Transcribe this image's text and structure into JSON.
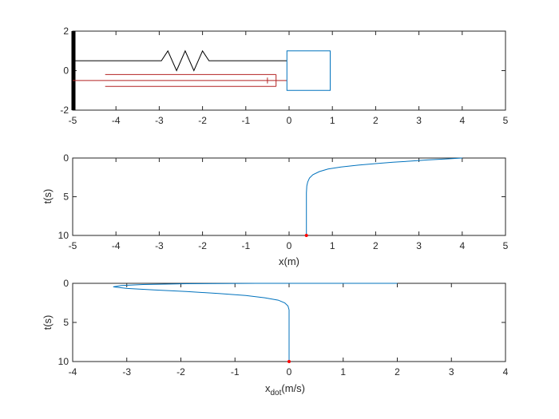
{
  "colors": {
    "axis": "#262626",
    "trace": "#0072BD",
    "damper": "#B22222",
    "spring": "#000000",
    "mass": "#0072BD",
    "marker": "#FF0000"
  },
  "chart_data": [
    {
      "type": "line",
      "panel": "mass-spring-damper schematic",
      "xlim": [
        -5,
        5
      ],
      "ylim": [
        -2,
        2
      ],
      "x_ticks": [
        "-5",
        "-4",
        "-3",
        "-2",
        "-1",
        "0",
        "1",
        "2",
        "3",
        "4",
        "5"
      ],
      "y_ticks": [
        "2",
        "0",
        "-2"
      ],
      "xlabel": "",
      "ylabel": "",
      "wall": {
        "x": -5,
        "y": [
          -2,
          2
        ]
      },
      "spring": {
        "x": [
          -5,
          -2.95,
          -2.8,
          -2.6,
          -2.4,
          -2.2,
          -2.0,
          -1.85,
          -0.05
        ],
        "y": [
          0.5,
          0.5,
          1.0,
          -0.0,
          1.0,
          -0.0,
          1.0,
          0.5,
          0.5
        ]
      },
      "damper": {
        "rod": {
          "x": [
            -5,
            -0.3
          ],
          "y": [
            -0.5,
            -0.5
          ]
        },
        "cylinder_top": {
          "x": [
            -4.25,
            -0.3
          ],
          "y": [
            -0.2,
            -0.2
          ]
        },
        "cylinder_bottom": {
          "x": [
            -4.25,
            -0.3
          ],
          "y": [
            -0.8,
            -0.8
          ]
        },
        "cylinder_end": {
          "x": [
            -0.3,
            -0.3
          ],
          "y": [
            -0.8,
            -0.2
          ]
        },
        "piston": {
          "x": [
            -0.5,
            -0.5
          ],
          "y": [
            -0.65,
            -0.35
          ]
        },
        "connector": {
          "x": [
            -0.3,
            -0.05
          ],
          "y": [
            -0.5,
            -0.5
          ]
        }
      },
      "mass": {
        "x": -0.05,
        "y": -1.0,
        "width": 1.0,
        "height": 2.0
      }
    },
    {
      "type": "line",
      "panel": "position vs time",
      "xlim": [
        -5,
        5
      ],
      "ylim": [
        0,
        10
      ],
      "y_reversed": true,
      "x_ticks": [
        "-5",
        "-4",
        "-3",
        "-2",
        "-1",
        "0",
        "1",
        "2",
        "3",
        "4",
        "5"
      ],
      "y_ticks": [
        "0",
        "5",
        "10"
      ],
      "xlabel": "x(m)",
      "ylabel": "t(s)",
      "series": [
        {
          "x": [
            4.0,
            3.6,
            3.2,
            2.8,
            2.4,
            2.0,
            1.6,
            1.2,
            0.9,
            0.7,
            0.55,
            0.47,
            0.43,
            0.41,
            0.4,
            0.4,
            0.4
          ],
          "y": [
            0.0,
            0.12,
            0.25,
            0.4,
            0.55,
            0.72,
            0.92,
            1.15,
            1.42,
            1.75,
            2.15,
            2.6,
            3.1,
            3.6,
            4.5,
            7.0,
            10.0
          ]
        }
      ],
      "marker": {
        "x": 0.4,
        "y": 10.0
      }
    },
    {
      "type": "line",
      "panel": "velocity vs time",
      "xlim": [
        -4,
        4
      ],
      "ylim": [
        0,
        10
      ],
      "y_reversed": true,
      "x_ticks": [
        "-4",
        "-3",
        "-2",
        "-1",
        "0",
        "1",
        "2",
        "3",
        "4"
      ],
      "y_ticks": [
        "0",
        "5",
        "10"
      ],
      "xlabel_main": "x",
      "xlabel_sub": "dot",
      "xlabel_unit": "(m/s)",
      "ylabel": "t(s)",
      "series": [
        {
          "x": [
            2.0,
            0.8,
            -0.6,
            -1.9,
            -2.7,
            -3.1,
            -3.25,
            -3.0,
            -2.5,
            -1.9,
            -1.3,
            -0.8,
            -0.45,
            -0.2,
            -0.08,
            -0.02,
            0.0,
            0.0,
            0.0
          ],
          "y": [
            0.0,
            0.0,
            0.0,
            0.05,
            0.15,
            0.28,
            0.45,
            0.65,
            0.85,
            1.05,
            1.3,
            1.55,
            1.85,
            2.15,
            2.5,
            2.9,
            3.4,
            6.0,
            10.0
          ]
        }
      ],
      "marker": {
        "x": 0.0,
        "y": 10.0
      }
    }
  ]
}
